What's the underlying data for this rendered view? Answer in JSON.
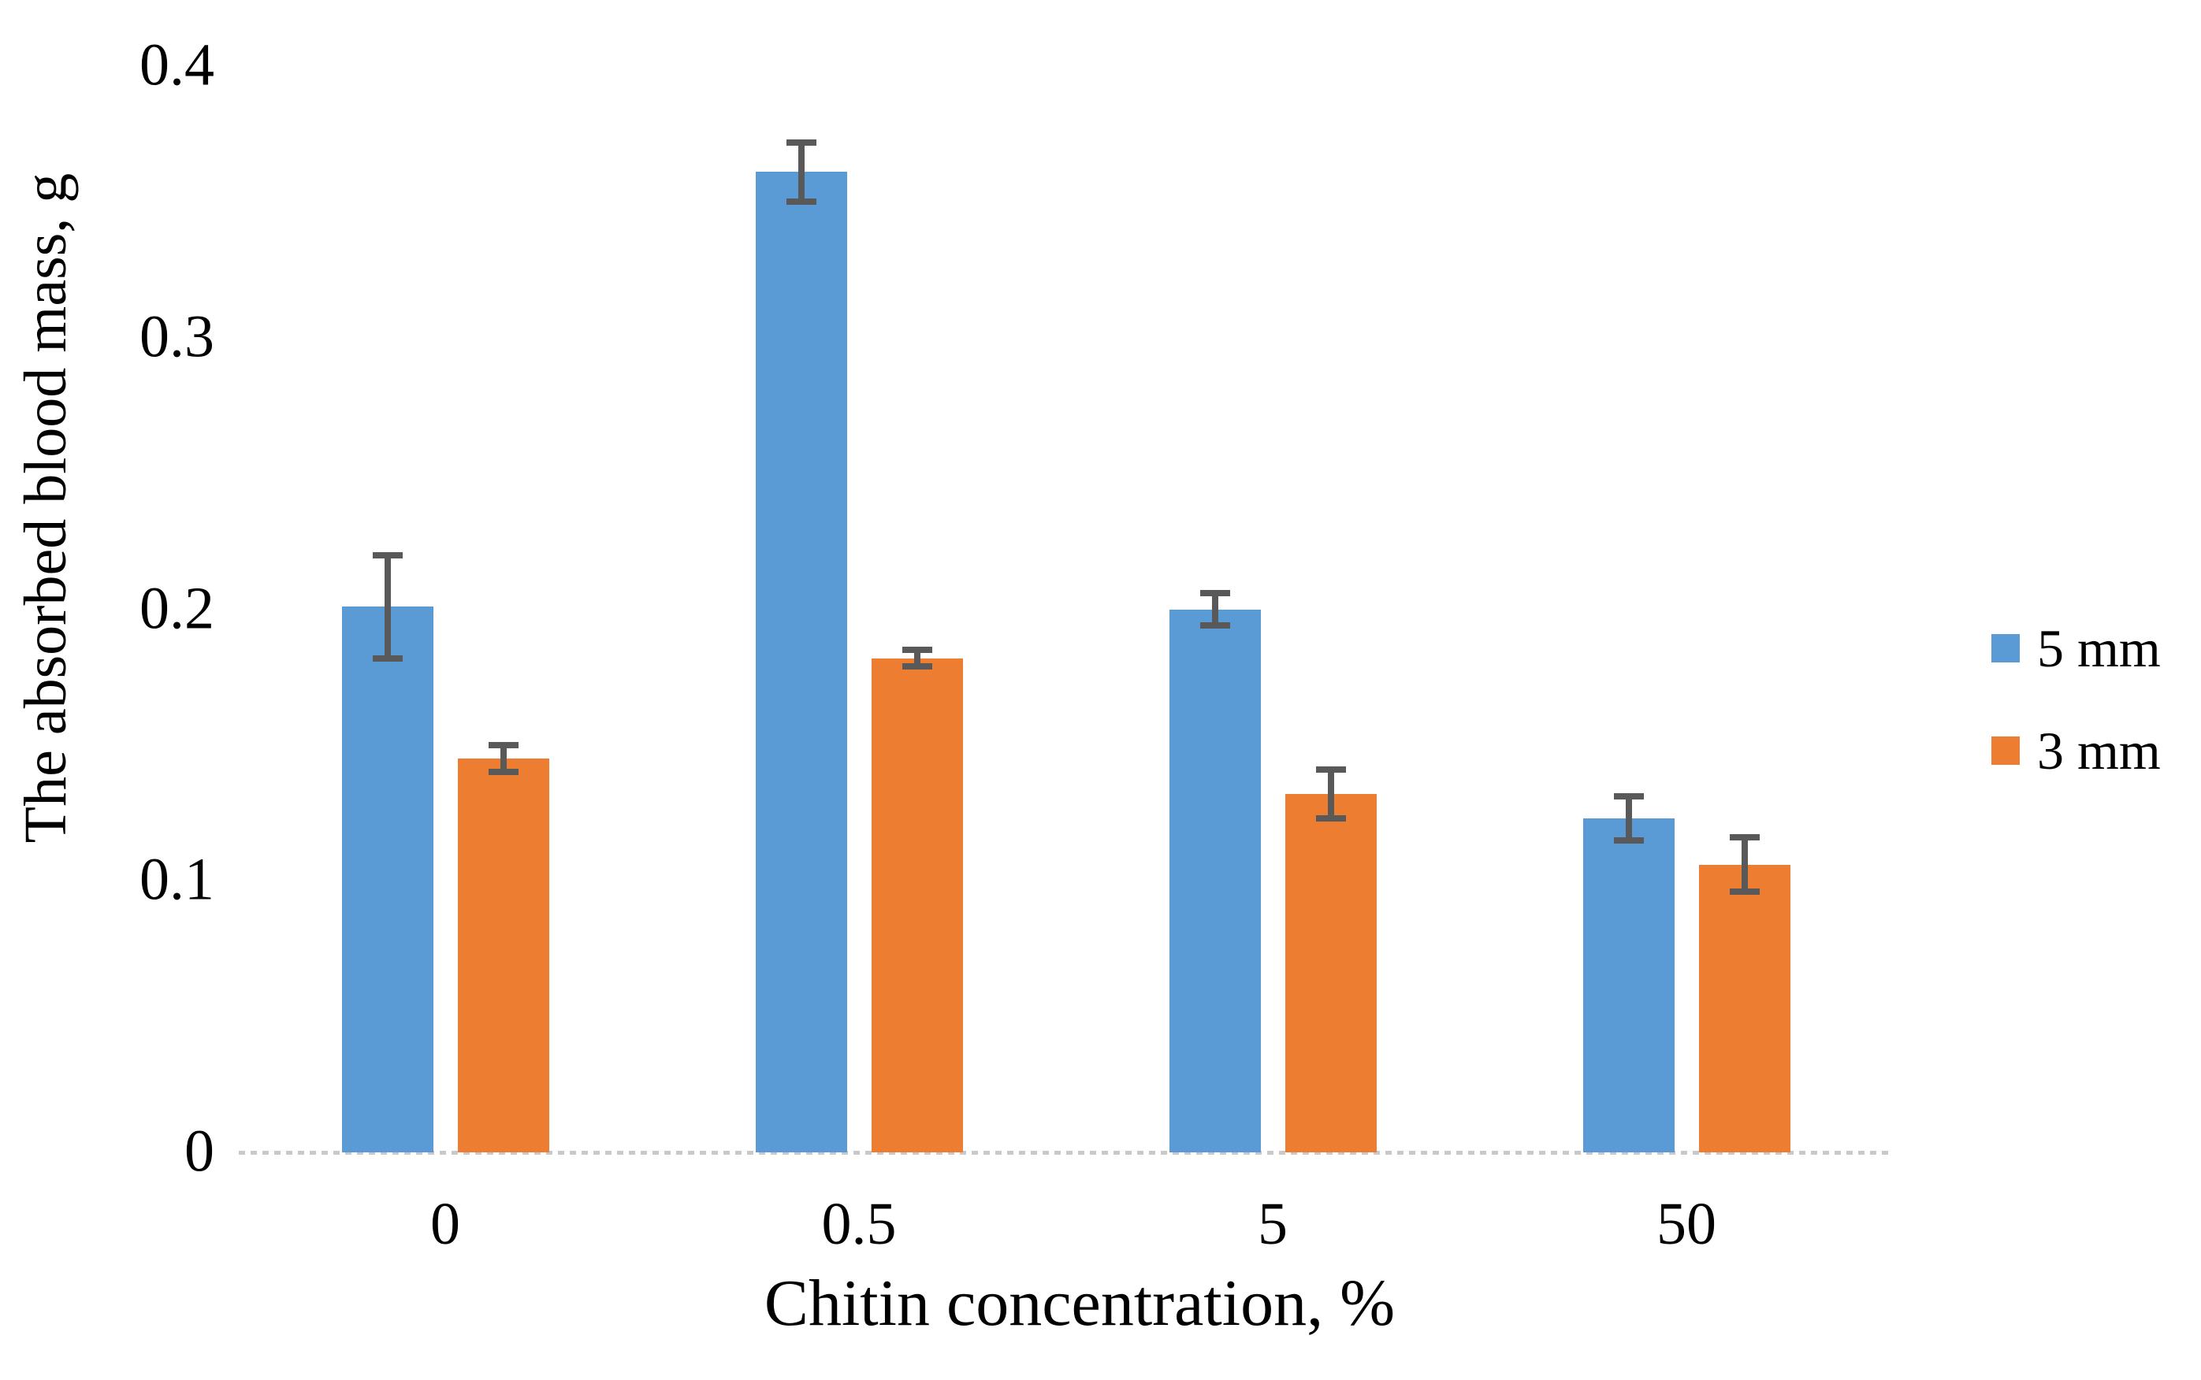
{
  "chart_data": {
    "type": "bar",
    "xlabel": "Chitin concentration, %",
    "ylabel": "The absorbed blood mass, g",
    "categories": [
      "0",
      "0.5",
      "5",
      "50"
    ],
    "series": [
      {
        "name": "5 mm",
        "color": "#5B9BD5",
        "values": [
          0.201,
          0.361,
          0.2,
          0.123
        ],
        "errors": [
          0.019,
          0.011,
          0.006,
          0.008
        ]
      },
      {
        "name": "3 mm",
        "color": "#ED7D31",
        "values": [
          0.145,
          0.182,
          0.132,
          0.106
        ],
        "errors": [
          0.005,
          0.003,
          0.009,
          0.01
        ]
      }
    ],
    "y_ticks": [
      "0",
      "0.1",
      "0.2",
      "0.3",
      "0.4"
    ],
    "ylim": [
      0,
      0.4
    ],
    "grid": false,
    "legend_position": "right",
    "error_bar_color": "#595959",
    "axis_line_color": "#c9c9c9",
    "axis_line_style": "dashed"
  }
}
